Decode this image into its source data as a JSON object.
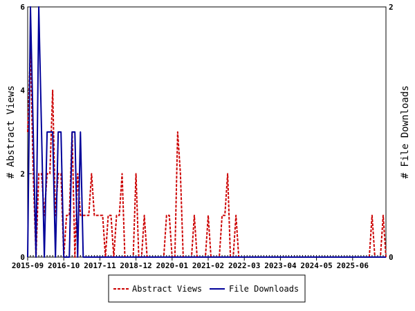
{
  "chart_data": {
    "type": "line",
    "left_axis": {
      "label": "# Abstract Views",
      "ylim": [
        0,
        6
      ],
      "ticks": [
        "0",
        "2",
        "4",
        "6"
      ]
    },
    "right_axis": {
      "label": "# File Downloads",
      "ylim": [
        0,
        2
      ],
      "ticks": [
        "0",
        "2"
      ]
    },
    "x_ticks": [
      "2015-09",
      "2016-10",
      "2017-11",
      "2018-12",
      "2020-01",
      "2021-02",
      "2022-03",
      "2023-04",
      "2024-05",
      "2025-06"
    ],
    "x_range_months": [
      0,
      129
    ],
    "grid": false,
    "legend_position": "bottom-center",
    "series": [
      {
        "name": "Abstract Views",
        "axis": "left",
        "color": "#cc0000",
        "style": "dashed",
        "values": [
          3,
          5,
          2,
          0,
          2,
          2,
          1,
          2,
          2,
          4,
          1,
          2,
          2,
          0,
          1,
          1,
          3,
          0,
          2,
          1,
          1,
          1,
          1,
          2,
          1,
          1,
          1,
          1,
          0,
          1,
          1,
          0,
          1,
          1,
          2,
          0,
          0,
          0,
          0,
          2,
          0,
          0,
          1,
          0,
          0,
          0,
          0,
          0,
          0,
          0,
          1,
          1,
          0,
          0,
          3,
          2,
          0,
          0,
          0,
          0,
          1,
          0,
          0,
          0,
          0,
          1,
          0,
          0,
          0,
          0,
          1,
          1,
          2,
          0,
          0,
          1,
          0,
          0,
          0,
          0,
          0,
          0,
          0,
          0,
          0,
          0,
          0,
          0,
          0,
          0,
          0,
          0,
          0,
          0,
          0,
          0,
          0,
          0,
          0,
          0,
          0,
          0,
          0,
          0,
          0,
          0,
          0,
          0,
          0,
          0,
          0,
          0,
          0,
          0,
          0,
          0,
          0,
          0,
          0,
          0,
          0,
          0,
          0,
          0,
          1,
          0,
          0,
          0,
          1,
          0
        ]
      },
      {
        "name": "File Downloads",
        "axis": "right",
        "color": "#000099",
        "style": "solid",
        "values": [
          0,
          2,
          1,
          0,
          2,
          1,
          0,
          1,
          1,
          1,
          0,
          1,
          1,
          0,
          0,
          0,
          1,
          1,
          0,
          1,
          0,
          0,
          0,
          0,
          0,
          0,
          0,
          0,
          0,
          0,
          0,
          0,
          0,
          0,
          0,
          0,
          0,
          0,
          0,
          0,
          0,
          0,
          0,
          0,
          0,
          0,
          0,
          0,
          0,
          0,
          0,
          0,
          0,
          0,
          0,
          0,
          0,
          0,
          0,
          0,
          0,
          0,
          0,
          0,
          0,
          0,
          0,
          0,
          0,
          0,
          0,
          0,
          0,
          0,
          0,
          0,
          0,
          0,
          0,
          0,
          0,
          0,
          0,
          0,
          0,
          0,
          0,
          0,
          0,
          0,
          0,
          0,
          0,
          0,
          0,
          0,
          0,
          0,
          0,
          0,
          0,
          0,
          0,
          0,
          0,
          0,
          0,
          0,
          0,
          0,
          0,
          0,
          0,
          0,
          0,
          0,
          0,
          0,
          0,
          0,
          0,
          0,
          0,
          0,
          0,
          0,
          0,
          0,
          0,
          0
        ]
      }
    ]
  }
}
